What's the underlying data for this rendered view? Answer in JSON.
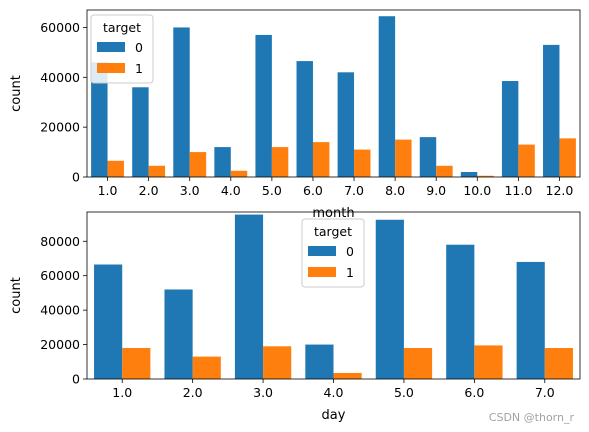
{
  "chart_data": [
    {
      "type": "bar",
      "xlabel": "month",
      "ylabel": "count",
      "categories": [
        "1.0",
        "2.0",
        "3.0",
        "4.0",
        "5.0",
        "6.0",
        "7.0",
        "8.0",
        "9.0",
        "10.0",
        "11.0",
        "12.0"
      ],
      "series": [
        {
          "name": "0",
          "color": "#1f77b4",
          "values": [
            46000,
            36000,
            60000,
            12000,
            57000,
            46500,
            42000,
            64500,
            16000,
            2000,
            38500,
            53000
          ]
        },
        {
          "name": "1",
          "color": "#ff7f0e",
          "values": [
            6500,
            4500,
            10000,
            2500,
            12000,
            14000,
            11000,
            15000,
            4500,
            500,
            13000,
            15500
          ]
        }
      ],
      "ylim": [
        0,
        67000
      ],
      "yticks": [
        0,
        20000,
        40000,
        60000
      ],
      "legend": {
        "title": "target",
        "placement": "upper-left"
      },
      "grid": false
    },
    {
      "type": "bar",
      "xlabel": "day",
      "ylabel": "count",
      "categories": [
        "1.0",
        "2.0",
        "3.0",
        "4.0",
        "5.0",
        "6.0",
        "7.0"
      ],
      "series": [
        {
          "name": "0",
          "color": "#1f77b4",
          "values": [
            66500,
            52000,
            95500,
            20000,
            92500,
            78000,
            68000
          ]
        },
        {
          "name": "1",
          "color": "#ff7f0e",
          "values": [
            18000,
            13000,
            19000,
            3500,
            18000,
            19500,
            18000
          ]
        }
      ],
      "ylim": [
        0,
        97000
      ],
      "yticks": [
        0,
        20000,
        40000,
        60000,
        80000
      ],
      "legend": {
        "title": "target",
        "placement": "upper-center"
      },
      "grid": false
    }
  ],
  "watermark": "CSDN @thorn_r"
}
